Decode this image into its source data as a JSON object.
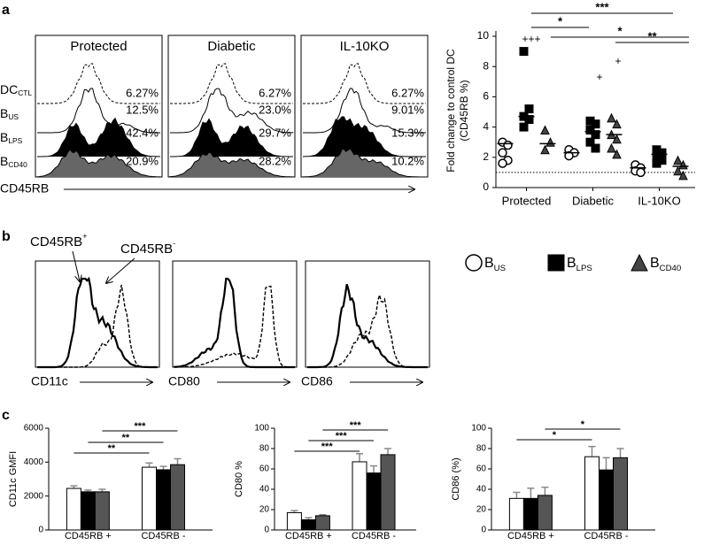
{
  "panel_labels": [
    "a",
    "b",
    "c"
  ],
  "flow_a": {
    "columns": [
      "Protected",
      "Diabetic",
      "IL-10KO"
    ],
    "rows": [
      {
        "main": "DC",
        "sub": "CTL"
      },
      {
        "main": "B",
        "sub": "US"
      },
      {
        "main": "B",
        "sub": "LPS"
      },
      {
        "main": "B",
        "sub": "CD40"
      }
    ],
    "percents": [
      [
        "6.27%",
        "12.5%",
        "42.4%",
        "20.9%"
      ],
      [
        "6.27%",
        "23.0%",
        "29.7%",
        "28.2%"
      ],
      [
        "6.27%",
        "9.01%",
        "15.3%",
        "10.2%"
      ]
    ],
    "axis_label": "CD45RB"
  },
  "flow_b": {
    "annotations": [
      {
        "main": "CD45RB",
        "sup": "+"
      },
      {
        "main": "CD45RB",
        "sup": "-"
      }
    ],
    "axis_labels": [
      "CD11c",
      "CD80",
      "CD86"
    ]
  },
  "chart_data": [
    {
      "type": "dot",
      "ylabel": [
        "Fold change to control DC",
        "(CD45RB %)"
      ],
      "categories": [
        "Protected",
        "Diabetic",
        "IL-10KO"
      ],
      "ylim": [
        0,
        10
      ],
      "yticks": [
        0,
        2,
        4,
        6,
        8,
        10
      ],
      "reference_line": 1,
      "series": [
        {
          "name": "B",
          "name_sub": "US",
          "marker": "circle",
          "color": "#ffffff",
          "values": [
            [
              3.0,
              2.8,
              2.3,
              1.8,
              1.6
            ],
            [
              2.5,
              2.3,
              2.1
            ],
            [
              1.5,
              1.3,
              1.1,
              1.0
            ]
          ],
          "medians": [
            2.9,
            2.3,
            1.3
          ]
        },
        {
          "name": "B",
          "name_sub": "LPS",
          "marker": "square",
          "color": "#000000",
          "values": [
            [
              9.0,
              5.2,
              4.7,
              4.5,
              4.0
            ],
            [
              4.4,
              4.2,
              3.8,
              3.5,
              3.0,
              2.6
            ],
            [
              2.5,
              2.3,
              2.0,
              1.8,
              1.6
            ]
          ],
          "medians": [
            4.7,
            3.7,
            2.2
          ]
        },
        {
          "name": "B",
          "name_sub": "CD40",
          "marker": "triangle",
          "color": "#444444",
          "values": [
            [
              3.8,
              3.0,
              2.5
            ],
            [
              4.6,
              4.2,
              3.5,
              3.2,
              2.6,
              2.2
            ],
            [
              1.8,
              1.5,
              1.1,
              0.8
            ]
          ],
          "medians": [
            2.9,
            3.5,
            1.4
          ]
        }
      ],
      "plus_labels": [
        "+++",
        "+",
        "+"
      ],
      "significance": [
        "***",
        "*",
        "*",
        "**"
      ]
    },
    {
      "type": "bar",
      "ylabel": "CD11c GMFI",
      "categories": [
        "CD45RB +",
        "CD45RB -"
      ],
      "ylim": [
        0,
        6000
      ],
      "yticks": [
        0,
        2000,
        4000,
        6000
      ],
      "series": [
        {
          "color": "#ffffff",
          "values": [
            2450,
            3700
          ],
          "errors": [
            150,
            250
          ]
        },
        {
          "color": "#000000",
          "values": [
            2250,
            3550
          ],
          "errors": [
            100,
            200
          ]
        },
        {
          "color": "#555555",
          "values": [
            2250,
            3850
          ],
          "errors": [
            150,
            350
          ]
        }
      ],
      "significance": [
        "**",
        "**",
        "***"
      ]
    },
    {
      "type": "bar",
      "ylabel": "CD80 %",
      "categories": [
        "CD45RB +",
        "CD45RB -"
      ],
      "ylim": [
        0,
        100
      ],
      "yticks": [
        0,
        20,
        40,
        60,
        80,
        100
      ],
      "series": [
        {
          "color": "#ffffff",
          "values": [
            17,
            67
          ],
          "errors": [
            2,
            8
          ]
        },
        {
          "color": "#000000",
          "values": [
            10,
            56
          ],
          "errors": [
            2,
            7
          ]
        },
        {
          "color": "#555555",
          "values": [
            14,
            74
          ],
          "errors": [
            1,
            6
          ]
        }
      ],
      "significance": [
        "***",
        "***",
        "***"
      ]
    },
    {
      "type": "bar",
      "ylabel": "CD86 (%)",
      "categories": [
        "CD45RB +",
        "CD45RB -"
      ],
      "ylim": [
        0,
        100
      ],
      "yticks": [
        0,
        20,
        40,
        60,
        80,
        100
      ],
      "series": [
        {
          "color": "#ffffff",
          "values": [
            31,
            72
          ],
          "errors": [
            6,
            10
          ]
        },
        {
          "color": "#000000",
          "values": [
            31,
            59
          ],
          "errors": [
            10,
            12
          ]
        },
        {
          "color": "#555555",
          "values": [
            34,
            71
          ],
          "errors": [
            8,
            9
          ]
        }
      ],
      "significance": [
        "*",
        "*"
      ]
    }
  ]
}
